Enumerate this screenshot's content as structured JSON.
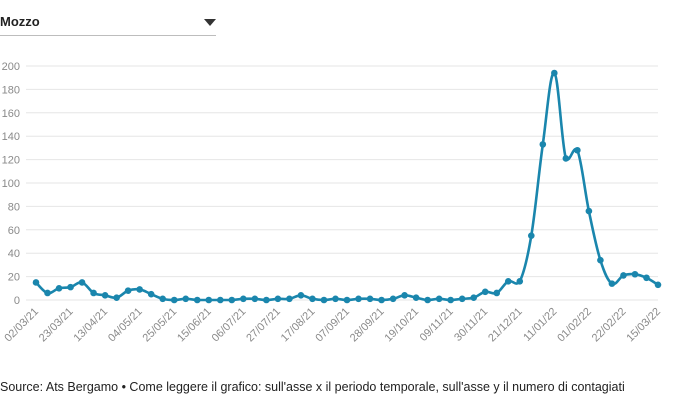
{
  "selector": {
    "value": "Mozzo"
  },
  "source": "Source: Ats Bergamo • Come leggere il grafico: sull'asse x il periodo temporale, sull'asse y il numero di contagiati",
  "colors": {
    "line": "#1a86ad",
    "grid": "#e6e6e6",
    "axis_text": "#8a8a8a"
  },
  "chart_data": {
    "type": "line",
    "title": "",
    "xlabel": "",
    "ylabel": "",
    "ylim": [
      0,
      200
    ],
    "y_ticks": [
      0,
      20,
      40,
      60,
      80,
      100,
      120,
      140,
      160,
      180,
      200
    ],
    "x_tick_labels": [
      "02/03/21",
      "23/03/21",
      "13/04/21",
      "04/05/21",
      "25/05/21",
      "15/06/21",
      "06/07/21",
      "27/07/21",
      "17/08/21",
      "07/09/21",
      "28/09/21",
      "19/10/21",
      "09/11/21",
      "30/11/21",
      "21/12/21",
      "11/01/22",
      "01/02/22",
      "22/02/22",
      "15/03/22"
    ],
    "grid": true,
    "series": [
      {
        "values": [
          15,
          6,
          10,
          11,
          15,
          6,
          4,
          2,
          8,
          9,
          5,
          1,
          0,
          1,
          0,
          0,
          0,
          0,
          1,
          1,
          0,
          1,
          1,
          4,
          1,
          0,
          1,
          0,
          1,
          1,
          0,
          1,
          4,
          2,
          0,
          1,
          0,
          1,
          2,
          7,
          6,
          16,
          16,
          55,
          133,
          194,
          121,
          128,
          76,
          34,
          14,
          21,
          22,
          19,
          13
        ]
      }
    ]
  }
}
